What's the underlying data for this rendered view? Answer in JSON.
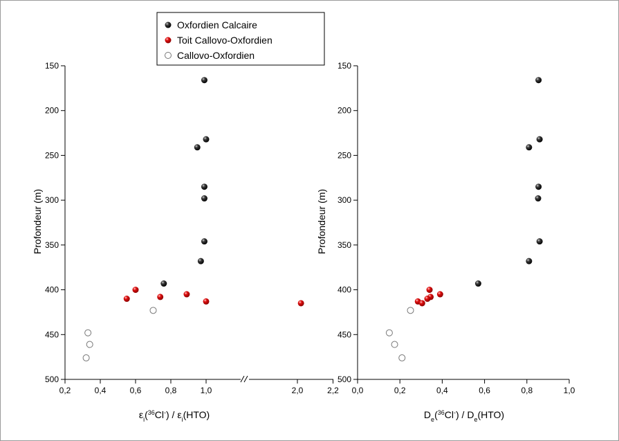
{
  "legend": [
    {
      "label": "Oxfordien Calcaire",
      "color": "#000000",
      "filled": true
    },
    {
      "label": "Toit Callovo-Oxfordien",
      "color": "#e00000",
      "filled": true
    },
    {
      "label": "Callovo-Oxfordien",
      "color": "#ffffff",
      "filled": false
    }
  ],
  "left_y_label": "Profondeur (m)",
  "right_y_label": "Profondeur (m)",
  "chart_data": [
    {
      "type": "scatter",
      "xlabel_parts": [
        "ε",
        "i",
        "(",
        "36",
        "Cl",
        "-",
        ") / ε",
        "i",
        "(HTO)"
      ],
      "ylabel": "Profondeur (m)",
      "ylim": [
        500,
        150
      ],
      "y_inverted": true,
      "y_ticks": [
        150,
        200,
        250,
        300,
        350,
        400,
        450,
        500
      ],
      "xlim": [
        0.2,
        2.2
      ],
      "x_axis_break": {
        "between": [
          1.2,
          1.8
        ],
        "marker": "//"
      },
      "x_ticks": [
        {
          "value": 0.2,
          "label": "0,2"
        },
        {
          "value": 0.4,
          "label": "0,4"
        },
        {
          "value": 0.6,
          "label": "0,6"
        },
        {
          "value": 0.8,
          "label": "0,8"
        },
        {
          "value": 1.0,
          "label": "1,0"
        },
        {
          "value": 2.0,
          "label": "2,0"
        },
        {
          "value": 2.2,
          "label": "2,2"
        }
      ],
      "series": [
        {
          "name": "Oxfordien Calcaire",
          "points": [
            [
              0.99,
              166
            ],
            [
              1.0,
              232
            ],
            [
              0.95,
              241
            ],
            [
              0.99,
              285
            ],
            [
              0.99,
              298
            ],
            [
              0.99,
              346
            ],
            [
              0.97,
              368
            ],
            [
              0.76,
              393
            ]
          ]
        },
        {
          "name": "Toit Callovo-Oxfordien",
          "points": [
            [
              0.6,
              400
            ],
            [
              0.89,
              405
            ],
            [
              0.74,
              408
            ],
            [
              0.55,
              410
            ],
            [
              1.0,
              413
            ],
            [
              2.02,
              415
            ]
          ]
        },
        {
          "name": "Callovo-Oxfordien",
          "points": [
            [
              0.7,
              423
            ],
            [
              0.33,
              448
            ],
            [
              0.34,
              461
            ],
            [
              0.32,
              476
            ]
          ]
        }
      ]
    },
    {
      "type": "scatter",
      "xlabel_parts": [
        "D",
        "e",
        "(",
        "36",
        "Cl",
        "-",
        ") / D",
        "e",
        "(HTO)"
      ],
      "ylabel": "Profondeur (m)",
      "ylim": [
        500,
        150
      ],
      "y_inverted": true,
      "y_ticks": [
        150,
        200,
        250,
        300,
        350,
        400,
        450,
        500
      ],
      "xlim": [
        0.0,
        1.0
      ],
      "x_ticks": [
        {
          "value": 0.0,
          "label": "0,0"
        },
        {
          "value": 0.2,
          "label": "0,2"
        },
        {
          "value": 0.4,
          "label": "0,4"
        },
        {
          "value": 0.6,
          "label": "0,6"
        },
        {
          "value": 0.8,
          "label": "0,8"
        },
        {
          "value": 1.0,
          "label": "1,0"
        }
      ],
      "series": [
        {
          "name": "Oxfordien Calcaire",
          "points": [
            [
              0.855,
              166
            ],
            [
              0.86,
              232
            ],
            [
              0.81,
              241
            ],
            [
              0.855,
              285
            ],
            [
              0.853,
              298
            ],
            [
              0.86,
              346
            ],
            [
              0.81,
              368
            ],
            [
              0.57,
              393
            ]
          ]
        },
        {
          "name": "Toit Callovo-Oxfordien",
          "points": [
            [
              0.34,
              400
            ],
            [
              0.39,
              405
            ],
            [
              0.345,
              408
            ],
            [
              0.33,
              410
            ],
            [
              0.285,
              413
            ],
            [
              0.305,
              415
            ]
          ]
        },
        {
          "name": "Callovo-Oxfordien",
          "points": [
            [
              0.25,
              423
            ],
            [
              0.15,
              448
            ],
            [
              0.175,
              461
            ],
            [
              0.21,
              476
            ]
          ]
        }
      ]
    }
  ]
}
